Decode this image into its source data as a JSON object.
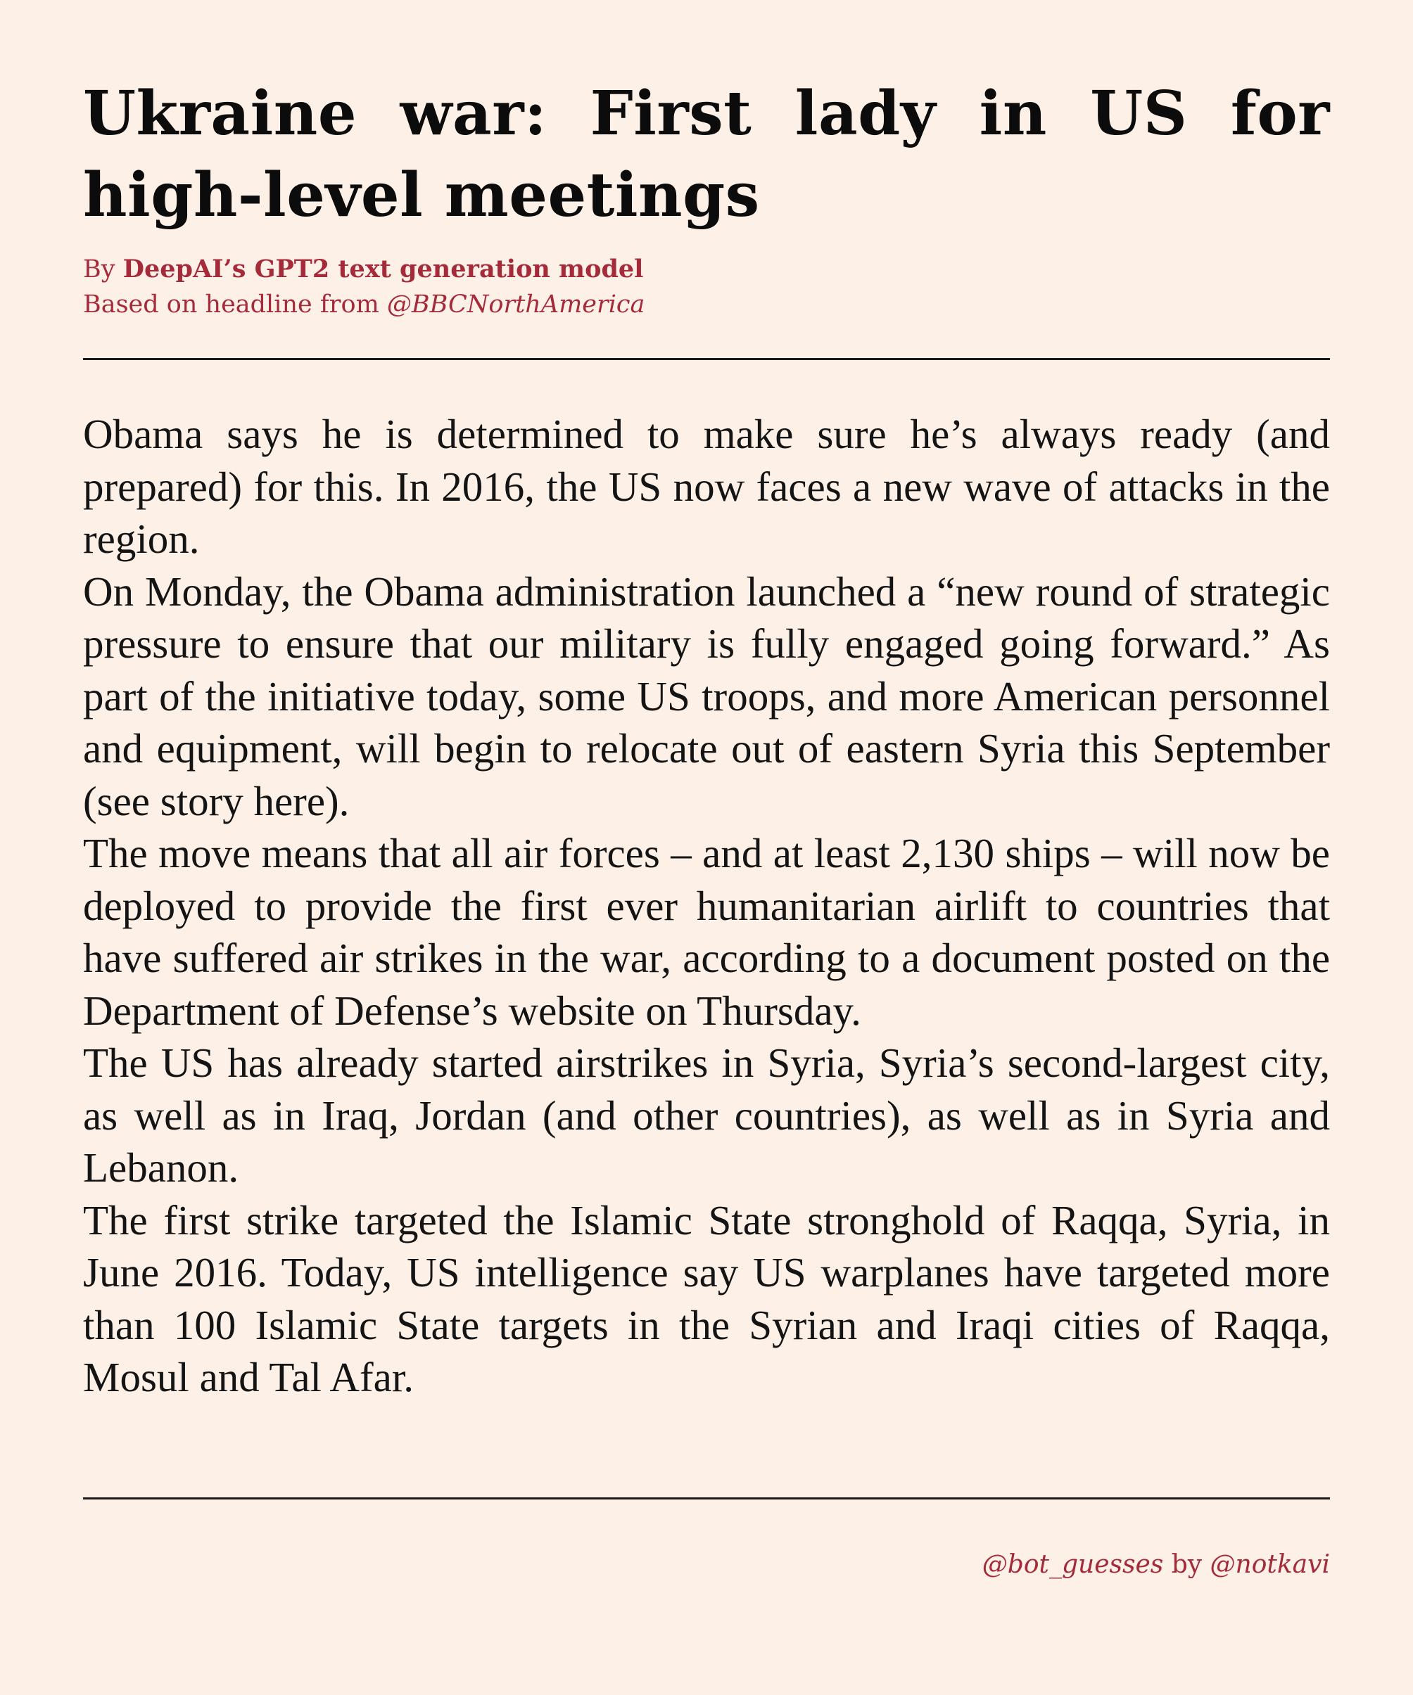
{
  "article": {
    "headline": "Ukraine war:  First lady in US for high-level meetings",
    "byline": {
      "by_label": "By",
      "author": "DeepAI’s GPT2 text generation model",
      "source_prefix": "Based on headline from",
      "source_handle": "@BBCNorthAmerica"
    },
    "paragraphs": [
      "Obama says he is determined to make sure he’s always ready (and prepared) for this. In 2016, the US now faces a new wave of attacks in the region.",
      "On Monday, the Obama administration launched a “new round of strategic pressure to ensure that our military is fully engaged going forward.” As part of the initiative today, some US troops, and more American personnel and equipment, will begin to relocate out of eastern Syria this September (see story here).",
      "The move means that all air forces – and at least 2,130 ships – will now be deployed to provide the first ever humanitarian airlift to countries that have suffered air strikes in the war, according to a document posted on the Department of Defense’s website on Thursday.",
      "The US has already started airstrikes in Syria, Syria’s second-largest city, as well as in Iraq, Jordan (and other countries), as well as in Syria and Lebanon.",
      "The first strike targeted the Islamic State stronghold of Raqqa, Syria, in June 2016. Today, US intelligence say US warplanes have targeted more than 100 Islamic State targets in the Syrian and Iraqi cities of Raqqa, Mosul and Tal Afar."
    ]
  },
  "footer": {
    "bot_handle": "@bot_guesses",
    "by_word": "by",
    "author_handle": "@notkavi"
  },
  "colors": {
    "background": "#fdf1e7",
    "accent": "#a52a3a",
    "text": "#141414"
  }
}
